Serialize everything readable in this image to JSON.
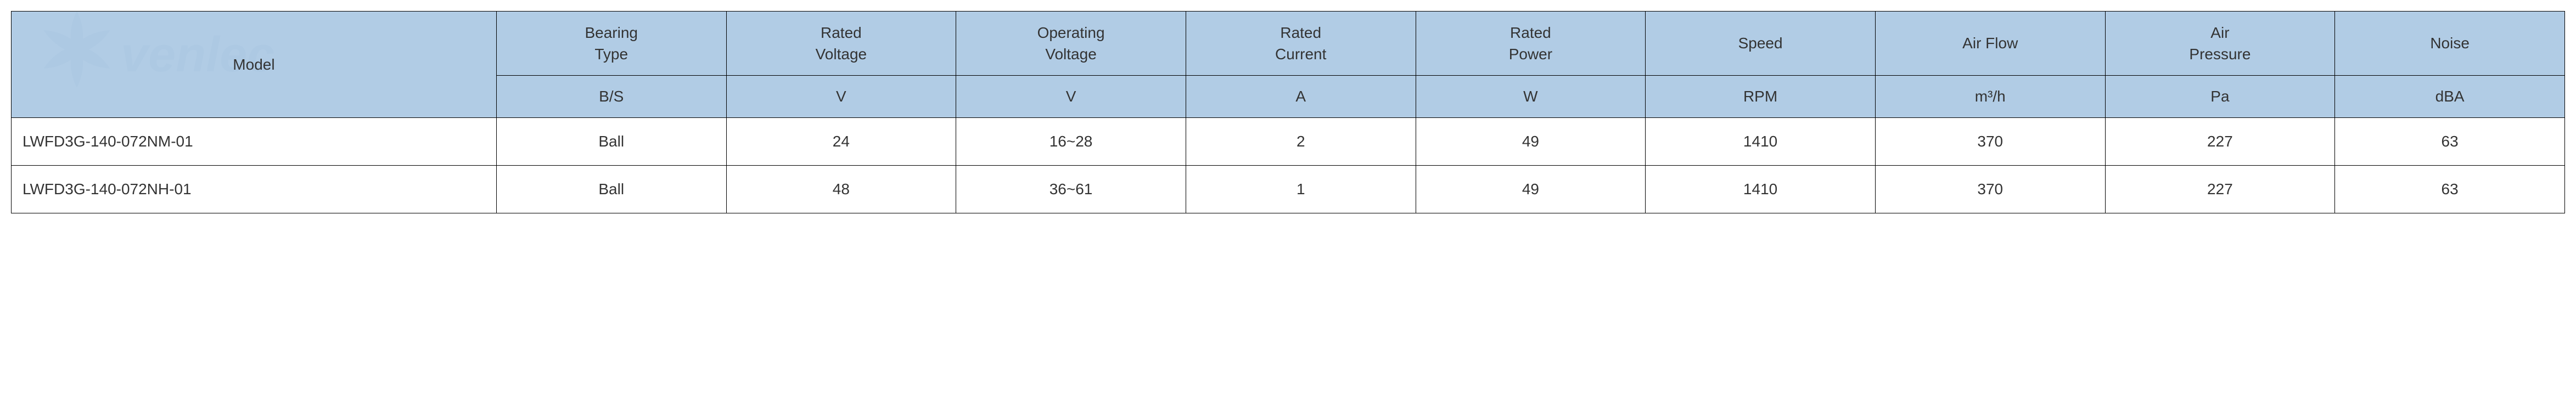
{
  "table": {
    "header_bg": "#a3c3e0",
    "border_color": "#000000",
    "text_color": "#333333",
    "font_size": 28,
    "columns": [
      {
        "label": "Model",
        "unit": "",
        "rowspan": 2
      },
      {
        "label": "Bearing\nType",
        "unit": "B/S"
      },
      {
        "label": "Rated\nVoltage",
        "unit": "V"
      },
      {
        "label": "Operating\nVoltage",
        "unit": "V"
      },
      {
        "label": "Rated\nCurrent",
        "unit": "A"
      },
      {
        "label": "Rated\nPower",
        "unit": "W"
      },
      {
        "label": "Speed",
        "unit": "RPM"
      },
      {
        "label": "Air Flow",
        "unit": "m³/h"
      },
      {
        "label": "Air\nPressure",
        "unit": "Pa"
      },
      {
        "label": "Noise",
        "unit": "dBA"
      }
    ],
    "rows": [
      {
        "model": "LWFD3G-140-072NM-01",
        "bearing": "Ball",
        "rated_voltage": "24",
        "op_voltage": "16~28",
        "rated_current": "2",
        "rated_power": "49",
        "speed": "1410",
        "air_flow": "370",
        "air_pressure": "227",
        "noise": "63"
      },
      {
        "model": "LWFD3G-140-072NH-01",
        "bearing": "Ball",
        "rated_voltage": "48",
        "op_voltage": "36~61",
        "rated_current": "1",
        "rated_power": "49",
        "speed": "1410",
        "air_flow": "370",
        "air_pressure": "227",
        "noise": "63"
      }
    ]
  },
  "watermark": {
    "text": "venlec",
    "fan_color": "#6b8aa8",
    "text_color": "#6b8aa8",
    "opacity": 0.18
  }
}
